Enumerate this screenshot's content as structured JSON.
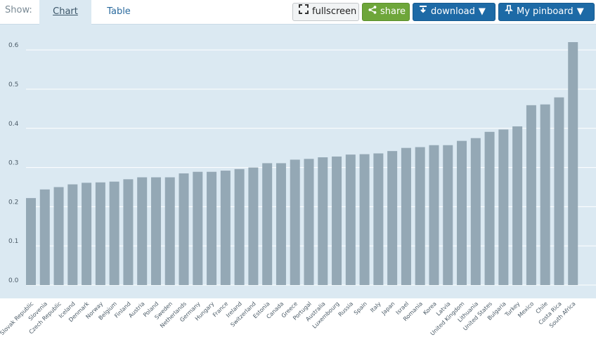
{
  "toolbar": {
    "show_label": "Show:",
    "tabs": [
      {
        "label": "Chart"
      },
      {
        "label": "Table"
      }
    ],
    "fullscreen_label": "fullscreen",
    "share_label": "share",
    "download_label": "download",
    "pinboard_label": "My pinboard",
    "dropdown_arrow": "▼"
  },
  "colors": {
    "bar": "#94a8b5",
    "chart_bg": "#dbe9f2",
    "share_green": "#6ea63a",
    "primary_blue": "#1d6aa6"
  },
  "chart_data": {
    "type": "bar",
    "title": "",
    "xlabel": "",
    "ylabel": "",
    "ylim": [
      0,
      0.62
    ],
    "yticks": [
      "0.0",
      "0.1",
      "0.2",
      "0.3",
      "0.4",
      "0.5",
      "0.6"
    ],
    "grid": true,
    "categories": [
      "Slovak Republic",
      "Slovenia",
      "Czech Republic",
      "Iceland",
      "Denmark",
      "Norway",
      "Belgium",
      "Finland",
      "Austria",
      "Poland",
      "Sweden",
      "Netherlands",
      "Germany",
      "Hungary",
      "France",
      "Ireland",
      "Switzerland",
      "Estonia",
      "Canada",
      "Greece",
      "Portugal",
      "Australia",
      "Luxembourg",
      "Russia",
      "Spain",
      "Italy",
      "Japan",
      "Israel",
      "Romania",
      "Korea",
      "Latvia",
      "United Kingdom",
      "Lithuania",
      "United States",
      "Bulgaria",
      "Turkey",
      "Mexico",
      "Chile",
      "Costa Rica",
      "South Africa"
    ],
    "values": [
      0.222,
      0.244,
      0.25,
      0.257,
      0.261,
      0.262,
      0.264,
      0.27,
      0.275,
      0.275,
      0.275,
      0.285,
      0.289,
      0.289,
      0.292,
      0.296,
      0.3,
      0.311,
      0.311,
      0.32,
      0.322,
      0.326,
      0.328,
      0.333,
      0.334,
      0.336,
      0.342,
      0.35,
      0.352,
      0.357,
      0.357,
      0.368,
      0.375,
      0.391,
      0.397,
      0.405,
      0.459,
      0.461,
      0.479,
      0.62
    ]
  }
}
